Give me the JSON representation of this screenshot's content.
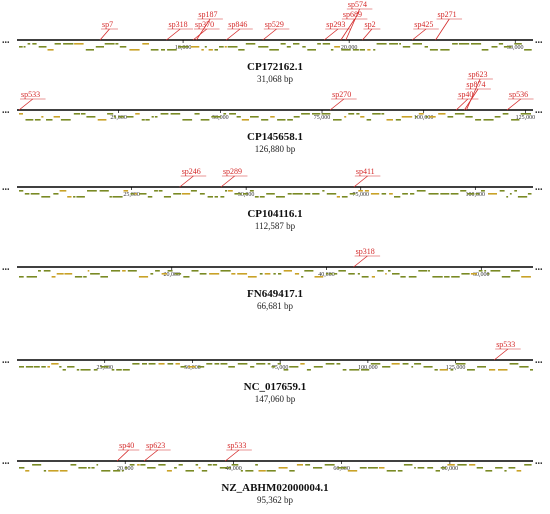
{
  "colors": {
    "backbone": "#000000",
    "gene": "#7a8a24",
    "gene_alt": "#c9a227",
    "spacer": "#d42a2a"
  },
  "ellipsis": "...",
  "tracks": [
    {
      "accession": "CP172162.1",
      "length_label": "31,068 bp",
      "length": 31068,
      "ticks": [
        "10,000",
        "20,000",
        "30,000"
      ],
      "tick_values": [
        10000,
        20000,
        30000
      ],
      "spacers": [
        {
          "name": "sp7",
          "pos": 5000
        },
        {
          "name": "sp318",
          "pos": 9000
        },
        {
          "name": "sp370",
          "pos": 10600
        },
        {
          "name": "sp187",
          "pos": 10800
        },
        {
          "name": "sp846",
          "pos": 12600
        },
        {
          "name": "sp529",
          "pos": 14800
        },
        {
          "name": "sp293",
          "pos": 18500
        },
        {
          "name": "sp689",
          "pos": 19500
        },
        {
          "name": "sp574",
          "pos": 19800
        },
        {
          "name": "sp2",
          "pos": 20800
        },
        {
          "name": "sp425",
          "pos": 23800
        },
        {
          "name": "sp271",
          "pos": 25200
        }
      ]
    },
    {
      "accession": "CP145658.1",
      "length_label": "126,880 bp",
      "length": 126880,
      "ticks": [
        "25,000",
        "50,000",
        "75,000",
        "100,000",
        "125,000"
      ],
      "tick_values": [
        25000,
        50000,
        75000,
        100000,
        125000
      ],
      "spacers": [
        {
          "name": "sp533",
          "pos": 500
        },
        {
          "name": "sp270",
          "pos": 77000
        },
        {
          "name": "sp40",
          "pos": 108000
        },
        {
          "name": "sp874",
          "pos": 110000
        },
        {
          "name": "sp623",
          "pos": 110500
        },
        {
          "name": "sp536",
          "pos": 120500
        }
      ]
    },
    {
      "accession": "CP104116.1",
      "length_label": "112,587 bp",
      "length": 112587,
      "ticks": [
        "25,000",
        "50,000",
        "75,000",
        "100,000"
      ],
      "tick_values": [
        25000,
        50000,
        75000,
        100000
      ],
      "spacers": [
        {
          "name": "sp246",
          "pos": 35500
        },
        {
          "name": "sp289",
          "pos": 44500
        },
        {
          "name": "sp411",
          "pos": 73500
        }
      ]
    },
    {
      "accession": "FN649417.1",
      "length_label": "66,681 bp",
      "length": 66681,
      "ticks": [
        "20,000",
        "40,000",
        "60,000"
      ],
      "tick_values": [
        20000,
        40000,
        60000
      ],
      "spacers": [
        {
          "name": "sp318",
          "pos": 43500
        }
      ]
    },
    {
      "accession": "NC_017659.1",
      "length_label": "147,060 bp",
      "length": 147060,
      "ticks": [
        "25,000",
        "50,000",
        "75,000",
        "100,000",
        "125,000"
      ],
      "tick_values": [
        25000,
        50000,
        75000,
        100000,
        125000
      ],
      "spacers": [
        {
          "name": "sp533",
          "pos": 136000
        }
      ]
    },
    {
      "accession": "NZ_ABHM02000004.1",
      "length_label": "95,362 bp",
      "length": 95362,
      "ticks": [
        "20,000",
        "40,000",
        "60,000",
        "80,000"
      ],
      "tick_values": [
        20000,
        40000,
        60000,
        80000
      ],
      "spacers": [
        {
          "name": "sp40",
          "pos": 18500
        },
        {
          "name": "sp623",
          "pos": 23500
        },
        {
          "name": "sp533",
          "pos": 38500
        }
      ]
    }
  ]
}
